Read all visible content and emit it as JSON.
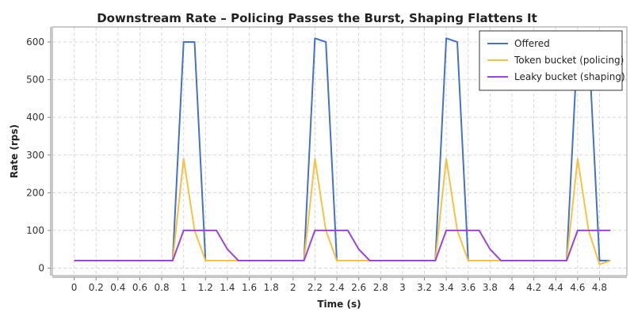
{
  "chart_data": {
    "type": "line",
    "title": "Downstream Rate – Policing Passes the Burst, Shaping Flattens It",
    "xlabel": "Time (s)",
    "ylabel": "Rate (rps)",
    "xlim": [
      -0.2,
      5.05
    ],
    "ylim": [
      -20,
      640
    ],
    "xticks": [
      "0",
      "0.2",
      "0.4",
      "0.6",
      "0.8",
      "1",
      "1.2",
      "1.4",
      "1.6",
      "1.8",
      "2",
      "2.2",
      "2.4",
      "2.6",
      "2.8",
      "3",
      "3.2",
      "3.4",
      "3.6",
      "3.8",
      "4",
      "4.2",
      "4.4",
      "4.6",
      "4.8"
    ],
    "yticks": [
      "0",
      "100",
      "200",
      "300",
      "400",
      "500",
      "600"
    ],
    "grid": true,
    "legend_position": "top-right",
    "series": [
      {
        "name": "Offered",
        "color": "#4472c4",
        "points": [
          [
            0,
            20
          ],
          [
            0.9,
            20
          ],
          [
            1.0,
            600
          ],
          [
            1.1,
            600
          ],
          [
            1.2,
            20
          ],
          [
            2.1,
            20
          ],
          [
            2.2,
            610
          ],
          [
            2.3,
            600
          ],
          [
            2.4,
            20
          ],
          [
            3.3,
            20
          ],
          [
            3.4,
            610
          ],
          [
            3.5,
            600
          ],
          [
            3.6,
            20
          ],
          [
            4.5,
            20
          ],
          [
            4.6,
            600
          ],
          [
            4.7,
            600
          ],
          [
            4.8,
            20
          ],
          [
            4.9,
            20
          ]
        ]
      },
      {
        "name": "Token bucket (policing)",
        "color": "#f5c242",
        "points": [
          [
            0,
            20
          ],
          [
            0.9,
            20
          ],
          [
            1.0,
            290
          ],
          [
            1.1,
            100
          ],
          [
            1.2,
            20
          ],
          [
            2.1,
            20
          ],
          [
            2.2,
            290
          ],
          [
            2.3,
            100
          ],
          [
            2.4,
            20
          ],
          [
            3.3,
            20
          ],
          [
            3.4,
            290
          ],
          [
            3.5,
            100
          ],
          [
            3.6,
            20
          ],
          [
            4.5,
            20
          ],
          [
            4.6,
            290
          ],
          [
            4.7,
            100
          ],
          [
            4.8,
            10
          ],
          [
            4.9,
            20
          ]
        ]
      },
      {
        "name": "Leaky bucket (shaping)",
        "color": "#9b47d6",
        "points": [
          [
            0,
            20
          ],
          [
            0.9,
            20
          ],
          [
            1.0,
            100
          ],
          [
            1.3,
            100
          ],
          [
            1.4,
            50
          ],
          [
            1.5,
            20
          ],
          [
            2.1,
            20
          ],
          [
            2.2,
            100
          ],
          [
            2.5,
            100
          ],
          [
            2.6,
            50
          ],
          [
            2.7,
            20
          ],
          [
            3.3,
            20
          ],
          [
            3.4,
            100
          ],
          [
            3.7,
            100
          ],
          [
            3.8,
            50
          ],
          [
            3.9,
            20
          ],
          [
            4.5,
            20
          ],
          [
            4.6,
            100
          ],
          [
            4.9,
            100
          ]
        ]
      }
    ]
  }
}
